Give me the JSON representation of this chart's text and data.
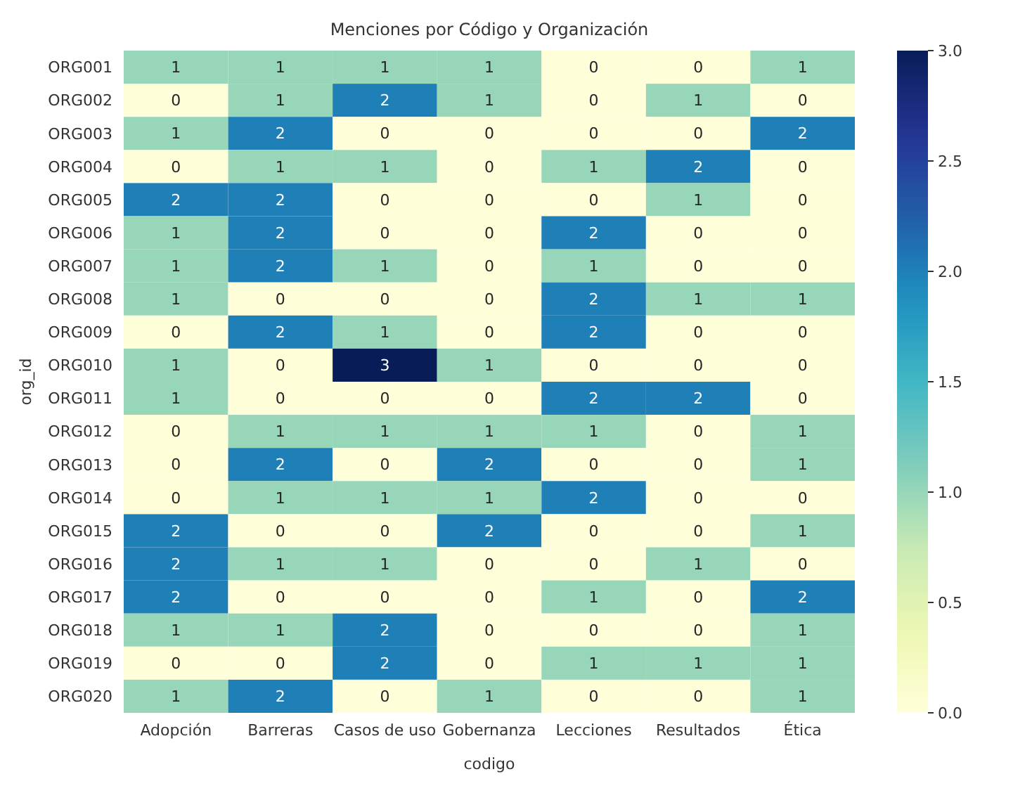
{
  "chart_data": {
    "type": "heatmap",
    "title": "Menciones por Código y Organización",
    "xlabel": "codigo",
    "ylabel": "org_id",
    "categories": [
      "Adopción",
      "Barreras",
      "Casos de uso",
      "Gobernanza",
      "Lecciones",
      "Resultados",
      "Ética"
    ],
    "y_categories": [
      "ORG001",
      "ORG002",
      "ORG003",
      "ORG004",
      "ORG005",
      "ORG006",
      "ORG007",
      "ORG008",
      "ORG009",
      "ORG010",
      "ORG011",
      "ORG012",
      "ORG013",
      "ORG014",
      "ORG015",
      "ORG016",
      "ORG017",
      "ORG018",
      "ORG019",
      "ORG020"
    ],
    "cells": [
      [
        1,
        1,
        1,
        1,
        0,
        0,
        1
      ],
      [
        0,
        1,
        2,
        1,
        0,
        1,
        0
      ],
      [
        1,
        2,
        0,
        0,
        0,
        0,
        2
      ],
      [
        0,
        1,
        1,
        0,
        1,
        2,
        0
      ],
      [
        2,
        2,
        0,
        0,
        0,
        1,
        0
      ],
      [
        1,
        2,
        0,
        0,
        2,
        0,
        0
      ],
      [
        1,
        2,
        1,
        0,
        1,
        0,
        0
      ],
      [
        1,
        0,
        0,
        0,
        2,
        1,
        1
      ],
      [
        0,
        2,
        1,
        0,
        2,
        0,
        0
      ],
      [
        1,
        0,
        3,
        1,
        0,
        0,
        0
      ],
      [
        1,
        0,
        0,
        0,
        2,
        2,
        0
      ],
      [
        0,
        1,
        1,
        1,
        1,
        0,
        1
      ],
      [
        0,
        2,
        0,
        2,
        0,
        0,
        1
      ],
      [
        0,
        1,
        1,
        1,
        2,
        0,
        0
      ],
      [
        2,
        0,
        0,
        2,
        0,
        0,
        1
      ],
      [
        2,
        1,
        1,
        0,
        0,
        1,
        0
      ],
      [
        2,
        0,
        0,
        0,
        1,
        0,
        2
      ],
      [
        1,
        1,
        2,
        0,
        0,
        0,
        1
      ],
      [
        0,
        0,
        2,
        0,
        1,
        1,
        1
      ],
      [
        1,
        2,
        0,
        1,
        0,
        0,
        1
      ]
    ],
    "clim": [
      0,
      3
    ],
    "cticks": [
      {
        "value": 0,
        "label": "0.0"
      },
      0.5,
      {
        "value": 1,
        "label": "1.0"
      },
      1.5,
      {
        "value": 2,
        "label": "2.0"
      },
      2.5,
      {
        "value": 3,
        "label": "3.0"
      }
    ],
    "data_labels": true
  }
}
